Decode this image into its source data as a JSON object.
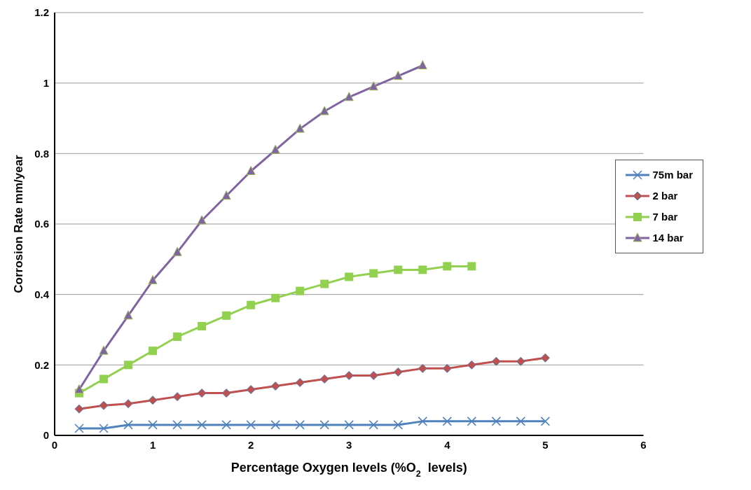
{
  "chart_data": {
    "type": "line",
    "xlabel": "Percentage Oxygen levels (%O$_{2}$  levels)",
    "ylabel": "Corrosion Rate mm/year",
    "xlim": [
      0,
      6
    ],
    "xticks": [
      0,
      1,
      2,
      3,
      4,
      5,
      6
    ],
    "ylim": [
      0,
      1.2
    ],
    "yticks": [
      0,
      0.2,
      0.4,
      0.6,
      0.8,
      1,
      1.2
    ],
    "grid": "y",
    "legend": "right",
    "series": [
      {
        "name": "75m bar",
        "color": "#4f81bd",
        "marker": "cross",
        "x": [
          0.25,
          0.5,
          0.75,
          1,
          1.25,
          1.5,
          1.75,
          2,
          2.25,
          2.5,
          2.75,
          3,
          3.25,
          3.5,
          3.75,
          4,
          4.25,
          4.5,
          4.75,
          5
        ],
        "values": [
          0.02,
          0.02,
          0.03,
          0.03,
          0.03,
          0.03,
          0.03,
          0.03,
          0.03,
          0.03,
          0.03,
          0.03,
          0.03,
          0.03,
          0.04,
          0.04,
          0.04,
          0.04,
          0.04,
          0.04
        ]
      },
      {
        "name": "2 bar",
        "color": "#c0504d",
        "marker": "diamond",
        "x": [
          0.25,
          0.5,
          0.75,
          1,
          1.25,
          1.5,
          1.75,
          2,
          2.25,
          2.5,
          2.75,
          3,
          3.25,
          3.5,
          3.75,
          4,
          4.25,
          4.5,
          4.75,
          5
        ],
        "values": [
          0.075,
          0.085,
          0.09,
          0.1,
          0.11,
          0.12,
          0.12,
          0.13,
          0.14,
          0.15,
          0.16,
          0.17,
          0.17,
          0.18,
          0.19,
          0.19,
          0.2,
          0.21,
          0.21,
          0.22
        ]
      },
      {
        "name": "7 bar",
        "color": "#92d050",
        "marker": "square",
        "x": [
          0.25,
          0.5,
          0.75,
          1,
          1.25,
          1.5,
          1.75,
          2,
          2.25,
          2.5,
          2.75,
          3,
          3.25,
          3.5,
          3.75,
          4,
          4.25
        ],
        "values": [
          0.12,
          0.16,
          0.2,
          0.24,
          0.28,
          0.31,
          0.34,
          0.37,
          0.39,
          0.41,
          0.43,
          0.45,
          0.46,
          0.47,
          0.47,
          0.48,
          0.48
        ]
      },
      {
        "name": "14 bar",
        "color": "#8064a2",
        "marker": "triangle",
        "x": [
          0.25,
          0.5,
          0.75,
          1,
          1.25,
          1.5,
          1.75,
          2,
          2.25,
          2.5,
          2.75,
          3,
          3.25,
          3.5,
          3.75
        ],
        "values": [
          0.13,
          0.24,
          0.34,
          0.44,
          0.52,
          0.61,
          0.68,
          0.75,
          0.81,
          0.87,
          0.92,
          0.96,
          0.99,
          1.02,
          1.05
        ]
      }
    ]
  }
}
